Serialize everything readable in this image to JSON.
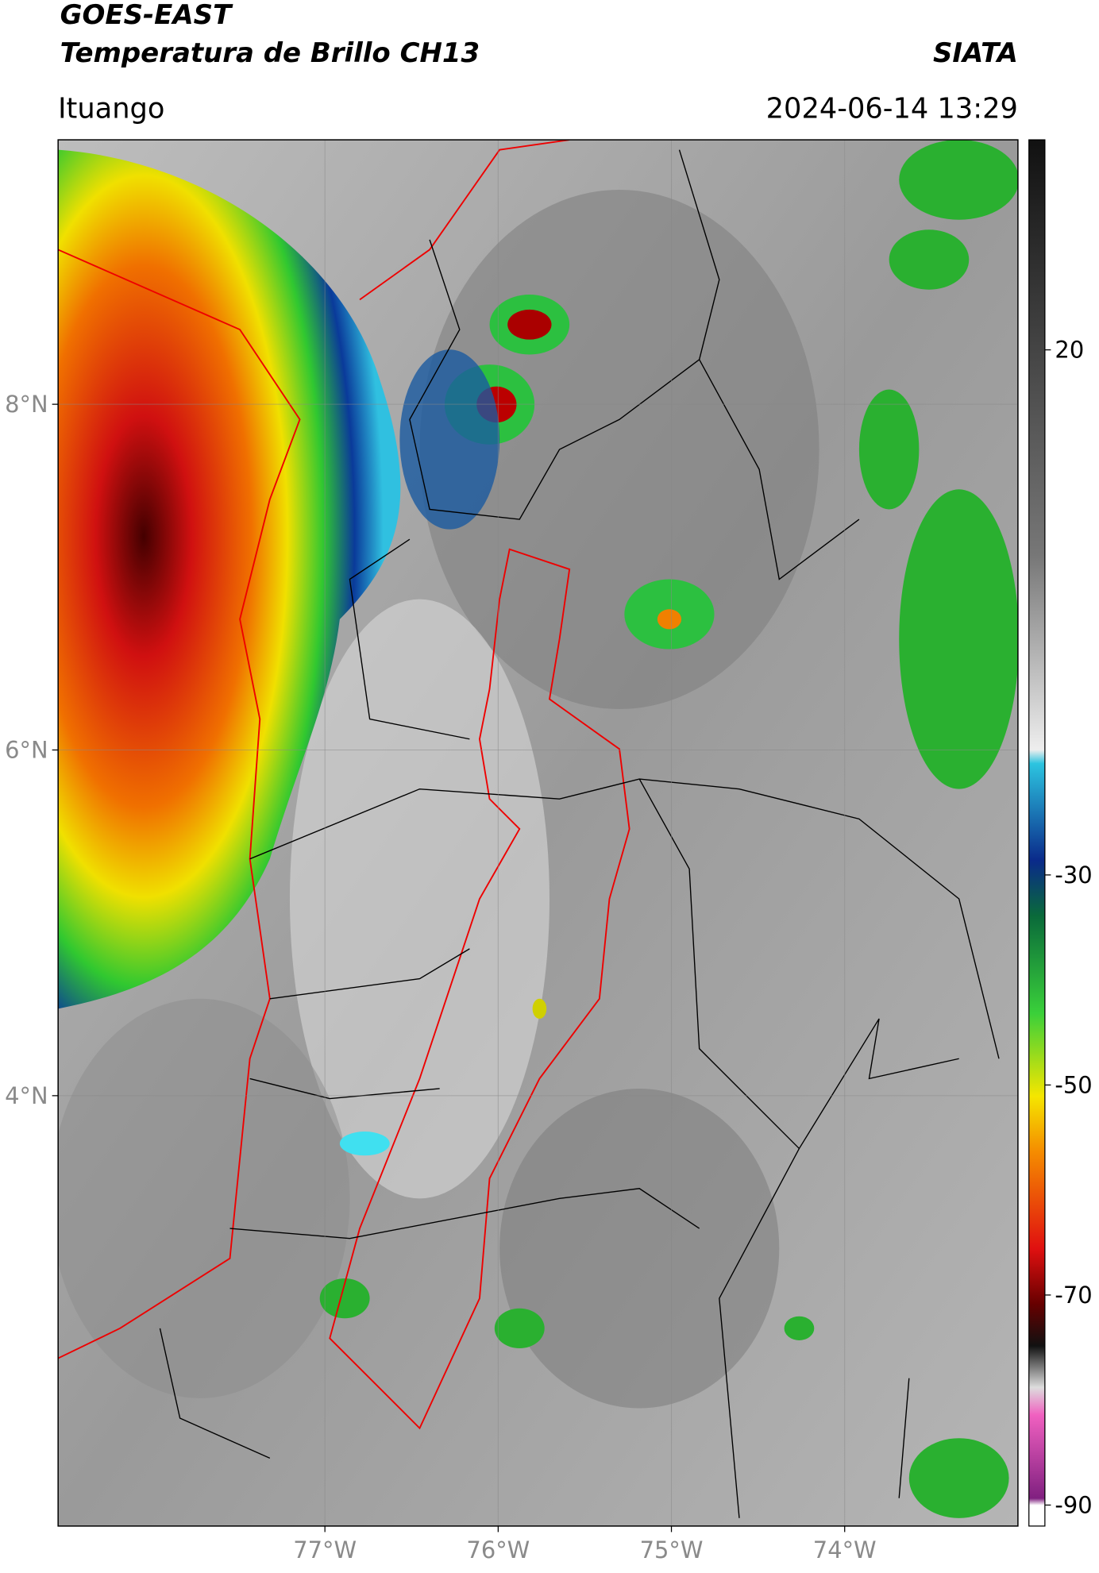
{
  "header": {
    "title": "GOES-EAST",
    "subtitle": "Temperatura de Brillo CH13",
    "brand": "SIATA",
    "location": "Ituango",
    "datetime": "2024-06-14 13:29"
  },
  "map": {
    "lonlim": [
      -78.54,
      -73.0
    ],
    "latlim": [
      1.51,
      9.53
    ],
    "lonticks": [
      {
        "value": -77,
        "label": "77°W"
      },
      {
        "value": -76,
        "label": "76°W"
      },
      {
        "value": -75,
        "label": "75°W"
      },
      {
        "value": -74,
        "label": "74°W"
      }
    ],
    "latticks": [
      {
        "value": 8,
        "label": "8°N"
      },
      {
        "value": 6,
        "label": "6°N"
      },
      {
        "value": 4,
        "label": "4°N"
      }
    ]
  },
  "colorbar": {
    "lim": [
      -92,
      40
    ],
    "ticks": [
      20,
      -30,
      -50,
      -70,
      -90
    ]
  }
}
